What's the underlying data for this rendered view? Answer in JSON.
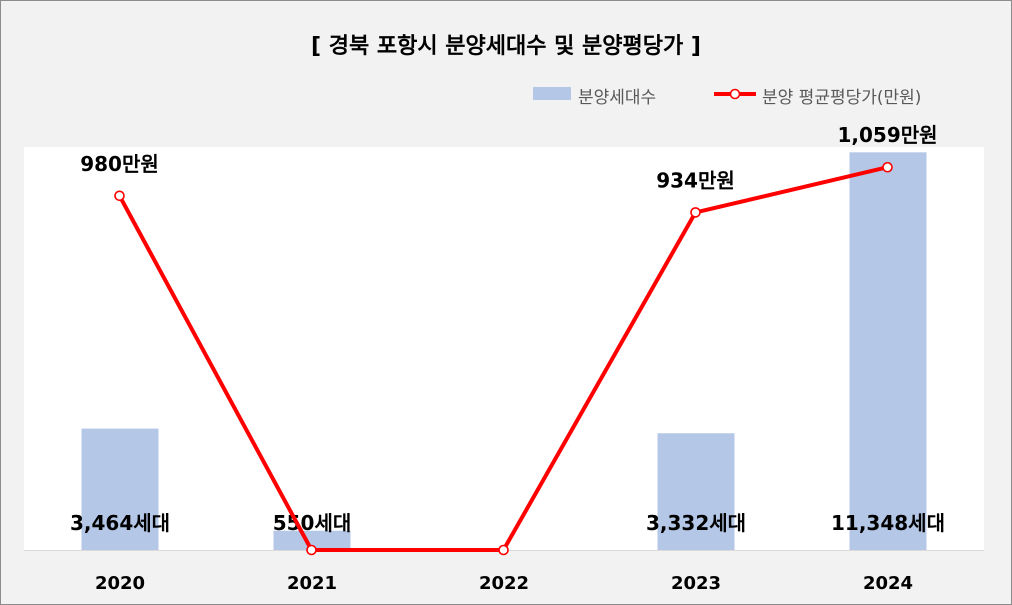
{
  "chart_data": {
    "type": "bar",
    "title": "[ 경북 포항시 분양세대수 및 분양평당가 ]",
    "categories": [
      "2020",
      "2021",
      "2022",
      "2023",
      "2024"
    ],
    "series": [
      {
        "name": "분양세대수",
        "type": "bar",
        "axis": "left",
        "values": [
          3464,
          550,
          0,
          3332,
          11348
        ],
        "labels": [
          "3,464세대",
          "550세대",
          "",
          "3,332세대",
          "11,348세대"
        ],
        "color": "#b4c7e7"
      },
      {
        "name": "분양 평균평당가(만원)",
        "type": "line",
        "axis": "right",
        "values": [
          980,
          0,
          0,
          934,
          1059
        ],
        "labels": [
          "980만원",
          "",
          "",
          "934만원",
          "1,059만원"
        ],
        "color": "#ff0000"
      }
    ],
    "bar_axis_range": [
      0,
      11500
    ],
    "line_axis_range": [
      0,
      1115
    ],
    "grid": false,
    "legend_position": "top-right"
  }
}
